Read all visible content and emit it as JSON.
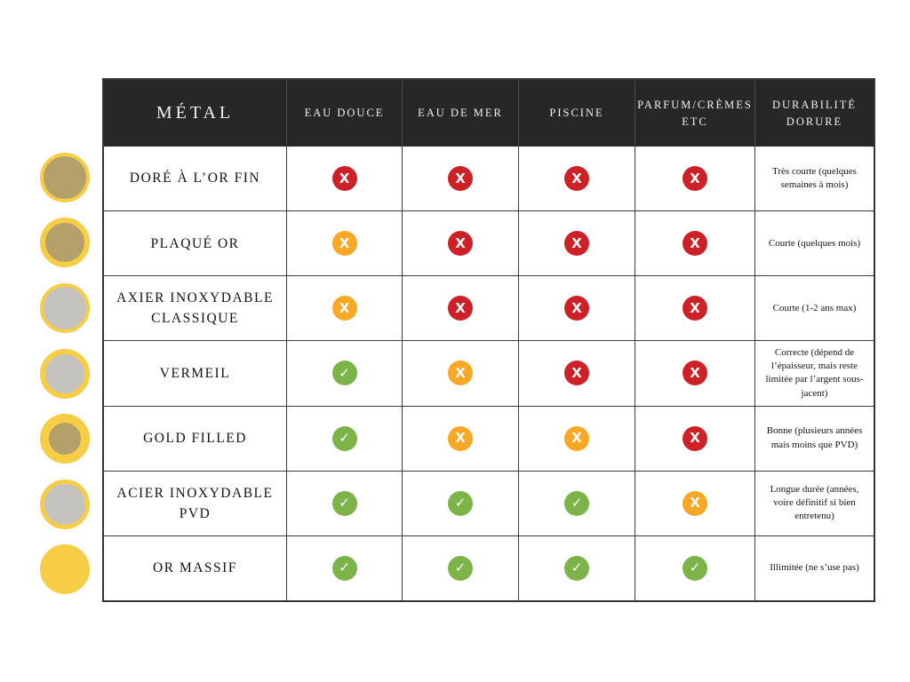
{
  "legend_swatches": [
    {
      "metal": "DORÉ À L’OR FIN",
      "ring_color": "#f6cd45",
      "core_color": "#b4a06a",
      "ring_width": 4
    },
    {
      "metal": "PLAQUÉ OR",
      "ring_color": "#f6cd45",
      "core_color": "#b4a06a",
      "ring_width": 6
    },
    {
      "metal": "AXIER INOXYDABLE CLASSIQUE",
      "ring_color": "#f6cd45",
      "core_color": "#c5c3c0",
      "ring_width": 4
    },
    {
      "metal": "VERMEIL",
      "ring_color": "#f6cd45",
      "core_color": "#c5c3c0",
      "ring_width": 6
    },
    {
      "metal": "GOLD FILLED",
      "ring_color": "#f6cd45",
      "core_color": "#b4a06a",
      "ring_width": 10
    },
    {
      "metal": "ACIER INOXYDABLE PVD",
      "ring_color": "#f6cd45",
      "core_color": "#c5c3c0",
      "ring_width": 5
    },
    {
      "metal": "OR MASSIF",
      "ring_color": "#f6cd45",
      "core_color": "#f6cd45",
      "ring_width": 28
    }
  ],
  "table": {
    "headers": [
      "MÉTAL",
      "EAU DOUCE",
      "EAU DE MER",
      "PISCINE",
      "PARFUM/CRÈMES ETC",
      "DURABILITÉ DORURE"
    ],
    "rows": [
      {
        "metal": "DORÉ À L’OR FIN",
        "statuses": [
          "no",
          "no",
          "no",
          "no"
        ],
        "durability": "Très courte (quelques semaines à mois)"
      },
      {
        "metal": "PLAQUÉ OR",
        "statuses": [
          "warn",
          "no",
          "no",
          "no"
        ],
        "durability": "Courte (quelques mois)"
      },
      {
        "metal": "AXIER INOXYDABLE CLASSIQUE",
        "statuses": [
          "warn",
          "no",
          "no",
          "no"
        ],
        "durability": "Courte (1-2 ans max)"
      },
      {
        "metal": "VERMEIL",
        "statuses": [
          "ok",
          "warn",
          "no",
          "no"
        ],
        "durability": "Correcte (dépend de l’épaisseur, mais reste limitée par l’argent sous-jacent)"
      },
      {
        "metal": "GOLD FILLED",
        "statuses": [
          "ok",
          "warn",
          "warn",
          "no"
        ],
        "durability": "Bonne (plusieurs années mais moins que PVD)"
      },
      {
        "metal": "ACIER INOXYDABLE PVD",
        "statuses": [
          "ok",
          "ok",
          "ok",
          "warn"
        ],
        "durability": "Longue durée (années, voire définitif si bien entretenu)"
      },
      {
        "metal": "OR MASSIF",
        "statuses": [
          "ok",
          "ok",
          "ok",
          "ok"
        ],
        "durability": "Illimitée (ne s’use pas)"
      }
    ],
    "status_colors": {
      "no": "#ce2127",
      "warn": "#f9a825",
      "ok": "#7cb44a"
    },
    "status_glyphs": {
      "no": "X",
      "warn": "X",
      "ok": "✓"
    },
    "status_icon_names": {
      "no": "cross-circle-icon",
      "warn": "cross-circle-icon",
      "ok": "check-circle-icon"
    }
  }
}
